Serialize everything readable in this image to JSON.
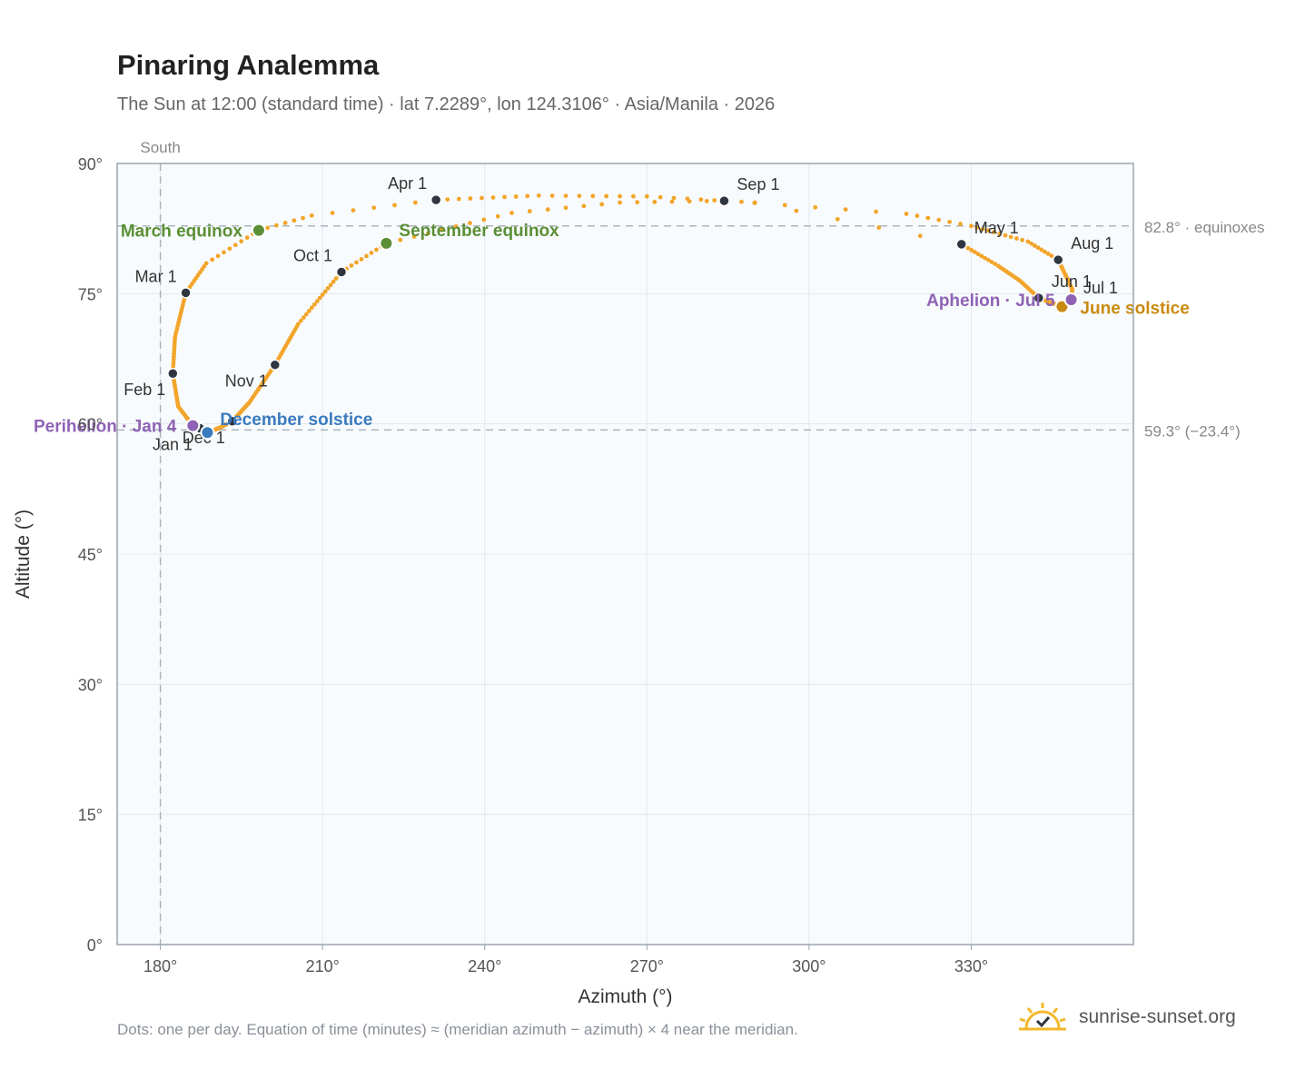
{
  "header": {
    "title": "Pinaring Analemma",
    "subtitle": "The Sun at 12:00 (standard time) · lat 7.2289°, lon 124.3106° · Asia/Manila · 2026"
  },
  "footer": {
    "note": "Dots: one per day. Equation of time (minutes) ≈ (meridian azimuth − azimuth) × 4 near the meridian.",
    "brand": "sunrise-sunset.org"
  },
  "colors": {
    "path": "#f2a52a",
    "month_marker": "#2f3640",
    "equinox": "#5a8f35",
    "december_solstice": "#3a7bbf",
    "june_solstice": "#c98a12",
    "apsis": "#8e63b5",
    "reference": "#aab4bf",
    "plot_bg": "#f8fbfd"
  },
  "chart_data": {
    "type": "scatter",
    "xlabel": "Azimuth (°)",
    "ylabel": "Altitude (°)",
    "xlim": [
      172,
      360
    ],
    "ylim": [
      0,
      90
    ],
    "x_ticks": [
      180,
      210,
      240,
      270,
      300,
      330
    ],
    "x_tick_labels": [
      "180°",
      "210°",
      "240°",
      "270°",
      "300°",
      "330°"
    ],
    "y_ticks": [
      0,
      15,
      30,
      45,
      60,
      75,
      90
    ],
    "y_tick_labels": [
      "0°",
      "15°",
      "30°",
      "45°",
      "60°",
      "75°",
      "90°"
    ],
    "grid": true,
    "south_marker": {
      "azimuth": 180,
      "label": "South"
    },
    "reference_lines": [
      {
        "altitude": 82.8,
        "label": "82.8° · equinoxes"
      },
      {
        "altitude": 59.3,
        "label": "59.3° (−23.4°)"
      }
    ],
    "path_anchors": [
      {
        "day": 1,
        "az": 187.3,
        "alt": 59.5
      },
      {
        "day": 4,
        "az": 186.0,
        "alt": 59.8
      },
      {
        "day": 18,
        "az": 183.3,
        "alt": 62.0
      },
      {
        "day": 32,
        "az": 182.3,
        "alt": 65.8
      },
      {
        "day": 45,
        "az": 182.7,
        "alt": 70.0
      },
      {
        "day": 60,
        "az": 184.7,
        "alt": 75.1
      },
      {
        "day": 70,
        "az": 188.5,
        "alt": 78.5
      },
      {
        "day": 79,
        "az": 198.2,
        "alt": 82.3
      },
      {
        "day": 85,
        "az": 208.0,
        "alt": 84.0
      },
      {
        "day": 91,
        "az": 231.0,
        "alt": 85.8
      },
      {
        "day": 100,
        "az": 250.0,
        "alt": 86.3
      },
      {
        "day": 108,
        "az": 270.0,
        "alt": 86.2
      },
      {
        "day": 116,
        "az": 290.0,
        "alt": 85.5
      },
      {
        "day": 121,
        "az": 328.2,
        "alt": 80.7
      },
      {
        "day": 132,
        "az": 335.0,
        "alt": 78.2
      },
      {
        "day": 142,
        "az": 339.0,
        "alt": 76.5
      },
      {
        "day": 152,
        "az": 342.5,
        "alt": 74.5
      },
      {
        "day": 161,
        "az": 345.0,
        "alt": 73.9
      },
      {
        "day": 172,
        "az": 346.8,
        "alt": 73.5
      },
      {
        "day": 182,
        "az": 348.4,
        "alt": 74.2
      },
      {
        "day": 186,
        "az": 348.5,
        "alt": 74.3
      },
      {
        "day": 197,
        "az": 348.7,
        "alt": 75.5
      },
      {
        "day": 213,
        "az": 346.1,
        "alt": 78.9
      },
      {
        "day": 222,
        "az": 340.5,
        "alt": 81.0
      },
      {
        "day": 232,
        "az": 330.0,
        "alt": 82.8
      },
      {
        "day": 238,
        "az": 318.0,
        "alt": 84.2
      },
      {
        "day": 244,
        "az": 284.3,
        "alt": 85.7
      },
      {
        "day": 250,
        "az": 265.0,
        "alt": 85.5
      },
      {
        "day": 256,
        "az": 245.0,
        "alt": 84.3
      },
      {
        "day": 265,
        "az": 221.8,
        "alt": 80.8
      },
      {
        "day": 274,
        "az": 213.5,
        "alt": 77.5
      },
      {
        "day": 290,
        "az": 205.5,
        "alt": 71.5
      },
      {
        "day": 305,
        "az": 201.2,
        "alt": 66.8
      },
      {
        "day": 320,
        "az": 196.5,
        "alt": 62.5
      },
      {
        "day": 335,
        "az": 193.3,
        "alt": 60.3
      },
      {
        "day": 345,
        "az": 190.8,
        "alt": 59.5
      },
      {
        "day": 355,
        "az": 188.7,
        "alt": 59.0
      },
      {
        "day": 365,
        "az": 187.4,
        "alt": 59.4
      }
    ],
    "month_markers": [
      {
        "label": "Jan 1",
        "az": 187.3,
        "alt": 59.5,
        "anchor": "below-left"
      },
      {
        "label": "Feb 1",
        "az": 182.3,
        "alt": 65.8,
        "anchor": "below-left"
      },
      {
        "label": "Mar 1",
        "az": 184.7,
        "alt": 75.1,
        "anchor": "above-left"
      },
      {
        "label": "Apr 1",
        "az": 231.0,
        "alt": 85.8,
        "anchor": "above-left"
      },
      {
        "label": "May 1",
        "az": 328.2,
        "alt": 80.7,
        "anchor": "above-right"
      },
      {
        "label": "Jun 1",
        "az": 342.5,
        "alt": 74.5,
        "anchor": "above-right"
      },
      {
        "label": "Jul 1",
        "az": 348.4,
        "alt": 74.2,
        "anchor": "right"
      },
      {
        "label": "Aug 1",
        "az": 346.1,
        "alt": 78.9,
        "anchor": "above-right"
      },
      {
        "label": "Sep 1",
        "az": 284.3,
        "alt": 85.7,
        "anchor": "above-right"
      },
      {
        "label": "Oct 1",
        "az": 213.5,
        "alt": 77.5,
        "anchor": "above-left"
      },
      {
        "label": "Nov 1",
        "az": 201.2,
        "alt": 66.8,
        "anchor": "below-left"
      },
      {
        "label": "Dec 1",
        "az": 193.3,
        "alt": 60.3,
        "anchor": "below-left"
      }
    ],
    "events": [
      {
        "label": "March equinox",
        "az": 198.2,
        "alt": 82.3,
        "kind": "equinox",
        "anchor": "left"
      },
      {
        "label": "September equinox",
        "az": 221.8,
        "alt": 80.8,
        "kind": "equinox",
        "anchor": "right"
      },
      {
        "label": "December solstice",
        "az": 188.7,
        "alt": 59.0,
        "kind": "december_solstice",
        "anchor": "right"
      },
      {
        "label": "June solstice",
        "az": 346.8,
        "alt": 73.5,
        "kind": "june_solstice",
        "anchor": "right-below"
      },
      {
        "label": "Perihelion · Jan 4",
        "az": 186.0,
        "alt": 59.8,
        "kind": "apsis",
        "anchor": "left"
      },
      {
        "label": "Aphelion · Jul 5",
        "az": 348.5,
        "alt": 74.3,
        "kind": "apsis",
        "anchor": "left"
      }
    ]
  }
}
